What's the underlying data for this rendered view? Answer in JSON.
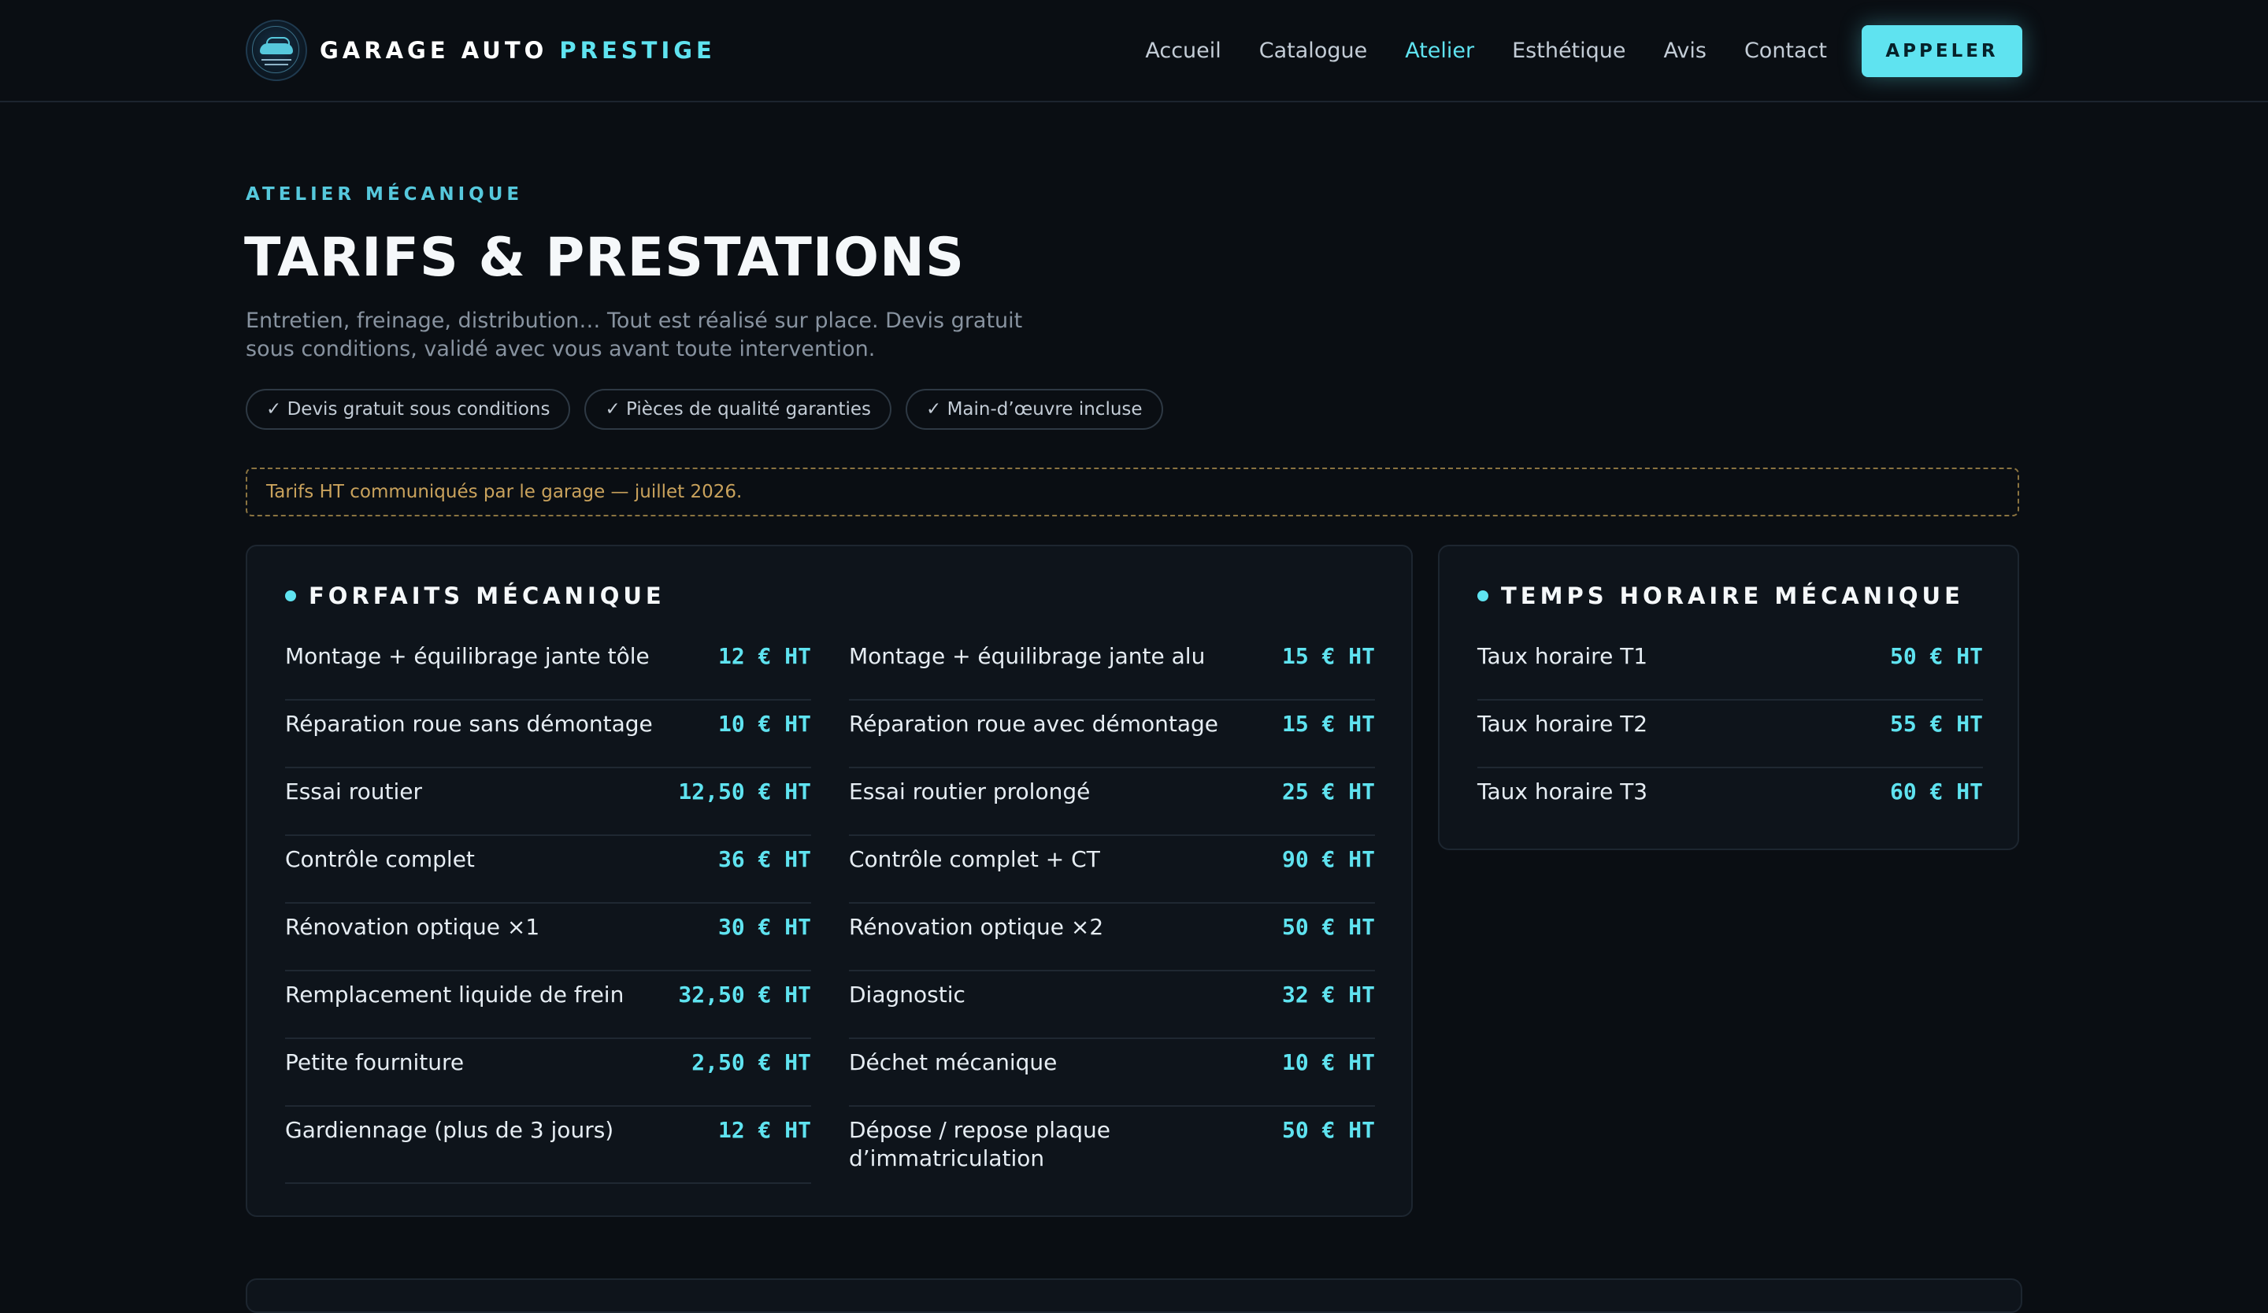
{
  "header": {
    "brand_first": "GARAGE AUTO",
    "brand_accent": "PRESTIGE",
    "logo_icon": "garage-logo-icon",
    "nav": [
      "Accueil",
      "Catalogue",
      "Atelier",
      "Esthétique",
      "Avis",
      "Contact"
    ],
    "active_nav": "Atelier",
    "call_label": "APPELER"
  },
  "intro": {
    "eyebrow": "ATELIER MÉCANIQUE",
    "title": "TARIFS & PRESTATIONS",
    "subtitle": "Entretien, freinage, distribution… Tout est réalisé sur place. Devis gratuit sous conditions, validé avec vous avant toute intervention.",
    "chips": [
      "✓ Devis gratuit sous conditions",
      "✓ Pièces de qualité garanties",
      "✓ Main-d’œuvre incluse"
    ],
    "notice": "Tarifs HT communiqués par le garage — juillet 2026."
  },
  "forfaits": {
    "title": "FORFAITS MÉCANIQUE",
    "left": [
      {
        "label": "Montage + équilibrage jante tôle",
        "price": "12 € HT"
      },
      {
        "label": "Réparation roue sans démontage",
        "price": "10 € HT"
      },
      {
        "label": "Essai routier",
        "price": "12,50 € HT"
      },
      {
        "label": "Contrôle complet",
        "price": "36 € HT"
      },
      {
        "label": "Rénovation optique ×1",
        "price": "30 € HT"
      },
      {
        "label": "Remplacement liquide de frein",
        "price": "32,50 € HT"
      },
      {
        "label": "Petite fourniture",
        "price": "2,50 € HT"
      },
      {
        "label": "Gardiennage (plus de 3 jours)",
        "price": "12 € HT"
      }
    ],
    "right": [
      {
        "label": "Montage + équilibrage jante alu",
        "price": "15 € HT"
      },
      {
        "label": "Réparation roue avec démontage",
        "price": "15 € HT"
      },
      {
        "label": "Essai routier prolongé",
        "price": "25 € HT"
      },
      {
        "label": "Contrôle complet + CT",
        "price": "90 € HT"
      },
      {
        "label": "Rénovation optique ×2",
        "price": "50 € HT"
      },
      {
        "label": "Diagnostic",
        "price": "32 € HT"
      },
      {
        "label": "Déchet mécanique",
        "price": "10 € HT"
      },
      {
        "label": "Dépose / repose plaque d’immatriculation",
        "price": "50 € HT"
      }
    ]
  },
  "horaire": {
    "title": "TEMPS HORAIRE MÉCANIQUE",
    "rows": [
      {
        "label": "Taux horaire T1",
        "price": "50 € HT"
      },
      {
        "label": "Taux horaire T2",
        "price": "55 € HT"
      },
      {
        "label": "Taux horaire T3",
        "price": "60 € HT"
      }
    ]
  },
  "colors": {
    "accent": "#5fe3f0",
    "background": "#0a0e13",
    "panel": "#0e141b",
    "notice": "#c9a25c"
  }
}
